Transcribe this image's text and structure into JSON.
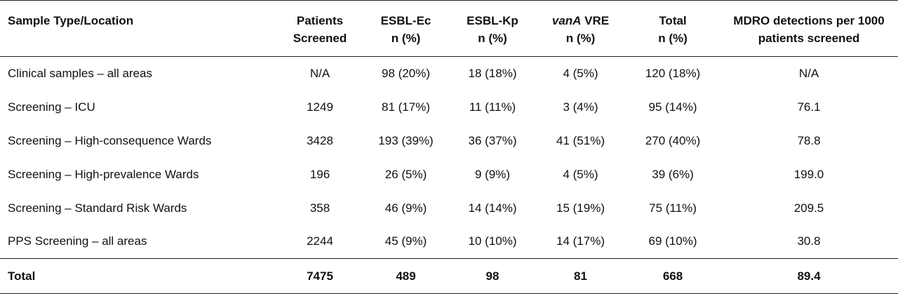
{
  "table": {
    "headers": [
      {
        "line1": "Sample Type/Location",
        "line2": ""
      },
      {
        "line1": "Patients",
        "line2": "Screened"
      },
      {
        "line1": "ESBL-Ec",
        "line2": "n (%)"
      },
      {
        "line1": "ESBL-Kp",
        "line2": "n (%)"
      },
      {
        "line1_italic": "vanA",
        "line1_rest": " VRE",
        "line2": "n (%)"
      },
      {
        "line1": "Total",
        "line2": "n (%)"
      },
      {
        "line1": "MDRO detections per 1000",
        "line2": "patients screened"
      }
    ],
    "rows": [
      {
        "location": "Clinical samples – all areas",
        "patients": "N/A",
        "esbl_ec": "98 (20%)",
        "esbl_kp": "18 (18%)",
        "vre": "4 (5%)",
        "total": "120 (18%)",
        "per1000": "N/A"
      },
      {
        "location": "Screening – ICU",
        "patients": "1249",
        "esbl_ec": "81 (17%)",
        "esbl_kp": "11 (11%)",
        "vre": "3 (4%)",
        "total": "95 (14%)",
        "per1000": "76.1"
      },
      {
        "location": "Screening – High-consequence Wards",
        "patients": "3428",
        "esbl_ec": "193 (39%)",
        "esbl_kp": "36 (37%)",
        "vre": "41 (51%)",
        "total": "270 (40%)",
        "per1000": "78.8"
      },
      {
        "location": "Screening – High-prevalence Wards",
        "patients": "196",
        "esbl_ec": "26 (5%)",
        "esbl_kp": "9 (9%)",
        "vre": "4 (5%)",
        "total": "39 (6%)",
        "per1000": "199.0"
      },
      {
        "location": "Screening – Standard Risk Wards",
        "patients": "358",
        "esbl_ec": "46 (9%)",
        "esbl_kp": "14 (14%)",
        "vre": "15 (19%)",
        "total": "75 (11%)",
        "per1000": "209.5"
      },
      {
        "location": "PPS Screening – all areas",
        "patients": "2244",
        "esbl_ec": "45 (9%)",
        "esbl_kp": "10 (10%)",
        "vre": "14 (17%)",
        "total": "69 (10%)",
        "per1000": "30.8"
      }
    ],
    "total_row": {
      "location": "Total",
      "patients": "7475",
      "esbl_ec": "489",
      "esbl_kp": "98",
      "vre": "81",
      "total": "668",
      "per1000": "89.4"
    }
  }
}
